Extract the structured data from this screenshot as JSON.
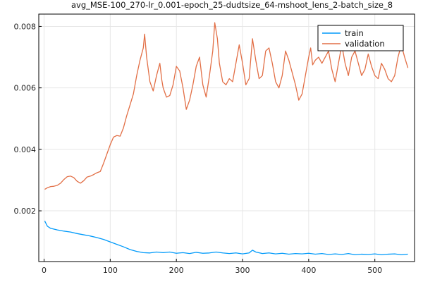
{
  "chart_data": {
    "type": "line",
    "title": "avg_MSE-100_270-lr_0.001-epoch_25-dudtsize_64-mshoot_lens_2-batch_size_8",
    "xlabel": "",
    "ylabel": "",
    "xlim": [
      -8,
      560
    ],
    "ylim": [
      0.00035,
      0.0084
    ],
    "xticks": [
      0,
      100,
      200,
      300,
      400,
      500
    ],
    "xtick_labels": [
      "0",
      "100",
      "200",
      "300",
      "400",
      "500"
    ],
    "yticks": [
      0.002,
      0.004,
      0.006,
      0.008
    ],
    "ytick_labels": [
      "0.002",
      "0.004",
      "0.006",
      "0.008"
    ],
    "grid": true,
    "legend_position": "top-right",
    "series": [
      {
        "name": "train",
        "color": "#009AFA",
        "points": [
          [
            1,
            0.00167
          ],
          [
            5,
            0.0015
          ],
          [
            10,
            0.00143
          ],
          [
            20,
            0.00138
          ],
          [
            30,
            0.00134
          ],
          [
            40,
            0.00131
          ],
          [
            50,
            0.00126
          ],
          [
            60,
            0.00122
          ],
          [
            70,
            0.00118
          ],
          [
            80,
            0.00113
          ],
          [
            90,
            0.00107
          ],
          [
            100,
            0.00099
          ],
          [
            110,
            0.00091
          ],
          [
            120,
            0.00083
          ],
          [
            130,
            0.00074
          ],
          [
            140,
            0.00068
          ],
          [
            150,
            0.00064
          ],
          [
            160,
            0.00063
          ],
          [
            170,
            0.00066
          ],
          [
            180,
            0.00064
          ],
          [
            190,
            0.00066
          ],
          [
            200,
            0.00062
          ],
          [
            210,
            0.00064
          ],
          [
            220,
            0.00061
          ],
          [
            230,
            0.00065
          ],
          [
            240,
            0.00062
          ],
          [
            250,
            0.00063
          ],
          [
            260,
            0.00066
          ],
          [
            270,
            0.00063
          ],
          [
            280,
            0.00061
          ],
          [
            290,
            0.00063
          ],
          [
            300,
            0.0006
          ],
          [
            310,
            0.00063
          ],
          [
            315,
            0.00072
          ],
          [
            320,
            0.00066
          ],
          [
            330,
            0.00061
          ],
          [
            340,
            0.00063
          ],
          [
            350,
            0.0006
          ],
          [
            360,
            0.00062
          ],
          [
            370,
            0.00059
          ],
          [
            380,
            0.00061
          ],
          [
            390,
            0.0006
          ],
          [
            400,
            0.00062
          ],
          [
            410,
            0.00059
          ],
          [
            420,
            0.00061
          ],
          [
            430,
            0.00058
          ],
          [
            440,
            0.0006
          ],
          [
            450,
            0.00058
          ],
          [
            460,
            0.00061
          ],
          [
            470,
            0.00057
          ],
          [
            480,
            0.00059
          ],
          [
            490,
            0.00058
          ],
          [
            500,
            0.0006
          ],
          [
            510,
            0.00057
          ],
          [
            520,
            0.00059
          ],
          [
            530,
            0.0006
          ],
          [
            540,
            0.00057
          ],
          [
            550,
            0.00059
          ]
        ]
      },
      {
        "name": "validation",
        "color": "#E26F46",
        "points": [
          [
            1,
            0.0027
          ],
          [
            5,
            0.00275
          ],
          [
            10,
            0.00279
          ],
          [
            15,
            0.0028
          ],
          [
            20,
            0.00283
          ],
          [
            25,
            0.0029
          ],
          [
            30,
            0.00302
          ],
          [
            35,
            0.00311
          ],
          [
            40,
            0.00313
          ],
          [
            45,
            0.00308
          ],
          [
            50,
            0.00296
          ],
          [
            55,
            0.0029
          ],
          [
            60,
            0.00298
          ],
          [
            65,
            0.0031
          ],
          [
            70,
            0.00313
          ],
          [
            75,
            0.00318
          ],
          [
            80,
            0.00324
          ],
          [
            85,
            0.00328
          ],
          [
            90,
            0.00355
          ],
          [
            95,
            0.00385
          ],
          [
            100,
            0.00415
          ],
          [
            105,
            0.0044
          ],
          [
            110,
            0.00445
          ],
          [
            115,
            0.00443
          ],
          [
            120,
            0.0047
          ],
          [
            125,
            0.0051
          ],
          [
            130,
            0.00545
          ],
          [
            135,
            0.0058
          ],
          [
            140,
            0.0064
          ],
          [
            145,
            0.0069
          ],
          [
            150,
            0.0073
          ],
          [
            152,
            0.00775
          ],
          [
            155,
            0.007
          ],
          [
            160,
            0.0062
          ],
          [
            165,
            0.0059
          ],
          [
            170,
            0.0064
          ],
          [
            175,
            0.0068
          ],
          [
            178,
            0.00625
          ],
          [
            180,
            0.006
          ],
          [
            185,
            0.0057
          ],
          [
            190,
            0.00575
          ],
          [
            195,
            0.0061
          ],
          [
            200,
            0.0067
          ],
          [
            205,
            0.00655
          ],
          [
            210,
            0.006
          ],
          [
            215,
            0.0053
          ],
          [
            220,
            0.0056
          ],
          [
            225,
            0.0061
          ],
          [
            230,
            0.0067
          ],
          [
            235,
            0.007
          ],
          [
            240,
            0.0061
          ],
          [
            245,
            0.0057
          ],
          [
            250,
            0.0064
          ],
          [
            255,
            0.0072
          ],
          [
            258,
            0.00812
          ],
          [
            262,
            0.0076
          ],
          [
            265,
            0.0068
          ],
          [
            270,
            0.0062
          ],
          [
            275,
            0.0061
          ],
          [
            280,
            0.0063
          ],
          [
            285,
            0.0062
          ],
          [
            290,
            0.0068
          ],
          [
            295,
            0.0074
          ],
          [
            300,
            0.0068
          ],
          [
            305,
            0.0061
          ],
          [
            310,
            0.0063
          ],
          [
            315,
            0.0076
          ],
          [
            320,
            0.0069
          ],
          [
            325,
            0.0063
          ],
          [
            330,
            0.0064
          ],
          [
            335,
            0.0072
          ],
          [
            340,
            0.0073
          ],
          [
            345,
            0.0068
          ],
          [
            350,
            0.0062
          ],
          [
            355,
            0.006
          ],
          [
            360,
            0.0064
          ],
          [
            365,
            0.0072
          ],
          [
            370,
            0.0069
          ],
          [
            375,
            0.0065
          ],
          [
            380,
            0.0061
          ],
          [
            385,
            0.0056
          ],
          [
            390,
            0.0058
          ],
          [
            395,
            0.0064
          ],
          [
            400,
            0.007
          ],
          [
            403,
            0.0073
          ],
          [
            406,
            0.00675
          ],
          [
            410,
            0.0069
          ],
          [
            415,
            0.007
          ],
          [
            420,
            0.0068
          ],
          [
            425,
            0.007
          ],
          [
            430,
            0.0072
          ],
          [
            435,
            0.0066
          ],
          [
            440,
            0.0062
          ],
          [
            445,
            0.0068
          ],
          [
            450,
            0.0074
          ],
          [
            455,
            0.0068
          ],
          [
            460,
            0.0064
          ],
          [
            465,
            0.007
          ],
          [
            470,
            0.0072
          ],
          [
            475,
            0.0068
          ],
          [
            480,
            0.0064
          ],
          [
            485,
            0.0066
          ],
          [
            490,
            0.0071
          ],
          [
            495,
            0.0067
          ],
          [
            500,
            0.0064
          ],
          [
            505,
            0.0063
          ],
          [
            510,
            0.0068
          ],
          [
            515,
            0.0066
          ],
          [
            520,
            0.0063
          ],
          [
            525,
            0.0062
          ],
          [
            530,
            0.0064
          ],
          [
            535,
            0.007
          ],
          [
            540,
            0.0074
          ],
          [
            545,
            0.007
          ],
          [
            550,
            0.00665
          ]
        ]
      }
    ]
  }
}
